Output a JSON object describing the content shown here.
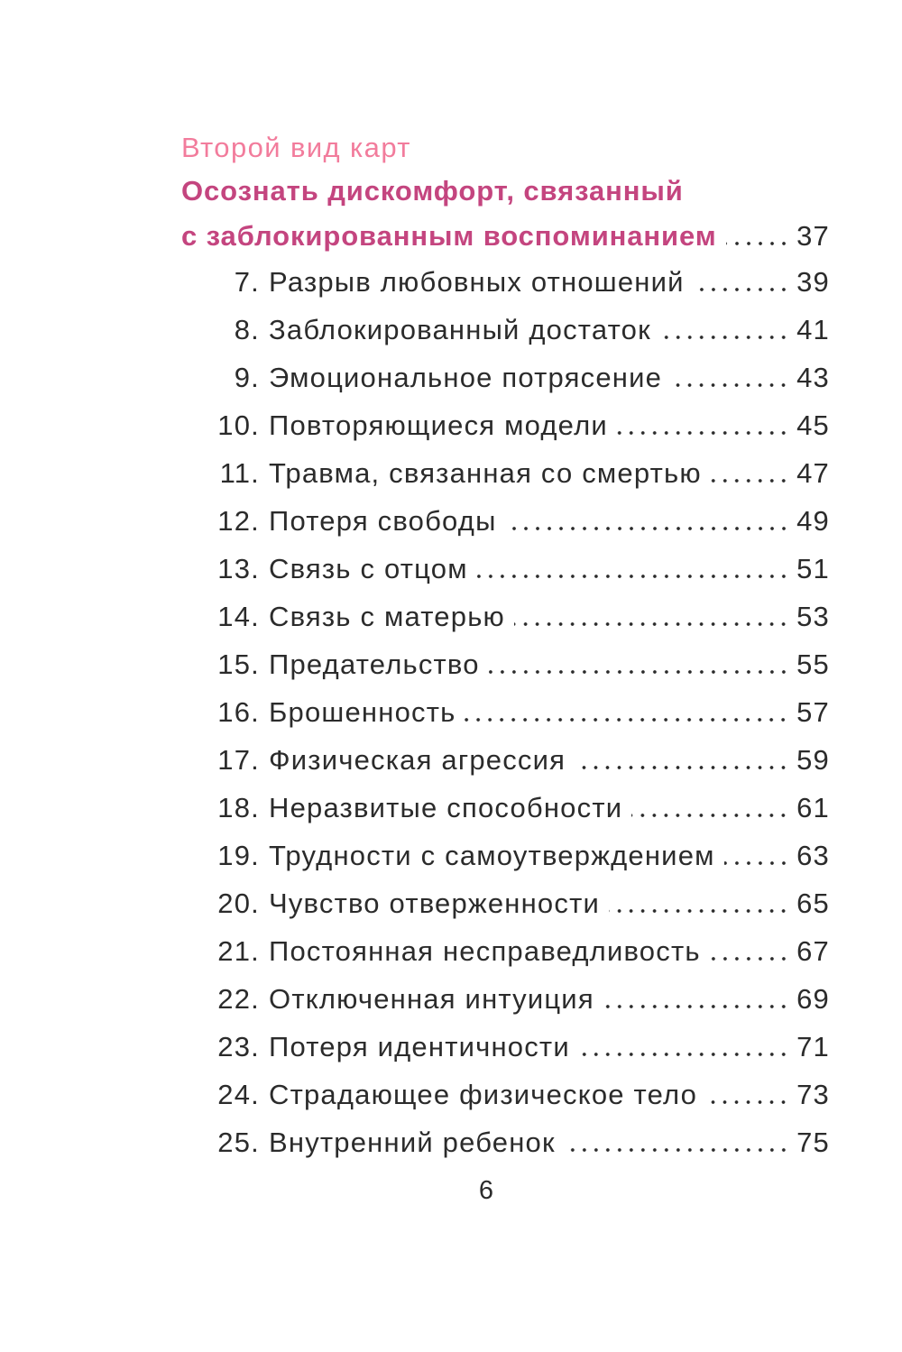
{
  "section": {
    "label": "Второй вид карт",
    "heading": [
      "Осознать дискомфорт, связанный",
      "с заблокированным воспоминанием"
    ],
    "page": 37
  },
  "entries": [
    {
      "number": "7.",
      "title": "Разрыв любовных отношений",
      "page": 39
    },
    {
      "number": "8.",
      "title": "Заблокированный достаток",
      "page": 41
    },
    {
      "number": "9.",
      "title": "Эмоциональное потрясение",
      "page": 43
    },
    {
      "number": "10.",
      "title": "Повторяющиеся модели",
      "page": 45
    },
    {
      "number": "11.",
      "title": "Травма, связанная со смертью",
      "page": 47
    },
    {
      "number": "12.",
      "title": "Потеря свободы",
      "page": 49
    },
    {
      "number": "13.",
      "title": "Связь с отцом",
      "page": 51
    },
    {
      "number": "14.",
      "title": "Связь с матерью",
      "page": 53
    },
    {
      "number": "15.",
      "title": "Предательство",
      "page": 55
    },
    {
      "number": "16.",
      "title": "Брошенность",
      "page": 57
    },
    {
      "number": "17.",
      "title": "Физическая агрессия",
      "page": 59
    },
    {
      "number": "18.",
      "title": "Неразвитые способности",
      "page": 61
    },
    {
      "number": "19.",
      "title": "Трудности с самоутверждением",
      "page": 63
    },
    {
      "number": "20.",
      "title": "Чувство отверженности",
      "page": 65
    },
    {
      "number": "21.",
      "title": "Постоянная несправедливость",
      "page": 67
    },
    {
      "number": "22.",
      "title": "Отключенная интуиция",
      "page": 69
    },
    {
      "number": "23.",
      "title": "Потеря идентичности",
      "page": 71
    },
    {
      "number": "24.",
      "title": "Страдающее физическое тело",
      "page": 73
    },
    {
      "number": "25.",
      "title": "Внутренний ребенок",
      "page": 75
    }
  ],
  "folio": 6
}
